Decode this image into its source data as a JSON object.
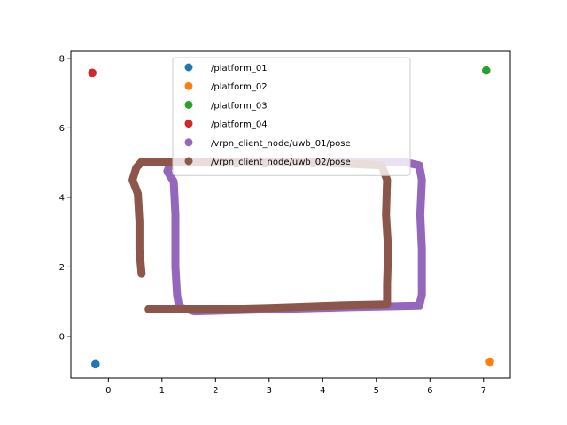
{
  "chart_data": {
    "type": "scatter",
    "xlim": [
      -0.7,
      7.5
    ],
    "ylim": [
      -1.2,
      8.2
    ],
    "x_ticks": [
      0,
      1,
      2,
      3,
      4,
      5,
      6,
      7
    ],
    "y_ticks": [
      0,
      2,
      4,
      6,
      8
    ],
    "x_tick_labels": [
      "0",
      "1",
      "2",
      "3",
      "4",
      "5",
      "6",
      "7"
    ],
    "y_tick_labels": [
      "0",
      "2",
      "4",
      "6",
      "8"
    ],
    "grid": false,
    "legend_position": "top-center",
    "series": [
      {
        "name": "/platform_01",
        "color": "#1f77b4",
        "marker_size": "small",
        "points": [
          [
            -0.24,
            -0.8
          ]
        ]
      },
      {
        "name": "/platform_02",
        "color": "#ff7f0e",
        "marker_size": "small",
        "points": [
          [
            7.12,
            -0.73
          ]
        ]
      },
      {
        "name": "/platform_03",
        "color": "#2ca02c",
        "marker_size": "small",
        "points": [
          [
            7.05,
            7.65
          ]
        ]
      },
      {
        "name": "/platform_04",
        "color": "#d62728",
        "marker_size": "small",
        "points": [
          [
            -0.3,
            7.58
          ]
        ]
      },
      {
        "name": "/vrpn_client_node/uwb_01/pose",
        "color": "#9467bd",
        "marker_size": "trail",
        "path": [
          [
            1.15,
            4.95
          ],
          [
            1.1,
            4.75
          ],
          [
            1.22,
            4.45
          ],
          [
            1.25,
            3.5
          ],
          [
            1.25,
            2.0
          ],
          [
            1.28,
            1.2
          ],
          [
            1.32,
            0.85
          ],
          [
            1.6,
            0.72
          ],
          [
            3.0,
            0.78
          ],
          [
            4.5,
            0.84
          ],
          [
            5.8,
            0.88
          ],
          [
            5.85,
            1.2
          ],
          [
            5.85,
            2.5
          ],
          [
            5.82,
            3.5
          ],
          [
            5.85,
            4.5
          ],
          [
            5.8,
            4.92
          ],
          [
            5.5,
            5.02
          ],
          [
            4.5,
            5.02
          ],
          [
            3.0,
            5.0
          ],
          [
            1.2,
            5.0
          ]
        ]
      },
      {
        "name": "/vrpn_client_node/uwb_02/pose",
        "color": "#8c564b",
        "marker_size": "trail",
        "path": [
          [
            0.62,
            1.8
          ],
          [
            0.58,
            2.5
          ],
          [
            0.58,
            3.3
          ],
          [
            0.55,
            4.1
          ],
          [
            0.45,
            4.5
          ],
          [
            0.52,
            4.85
          ],
          [
            0.62,
            5.02
          ],
          [
            1.2,
            5.02
          ],
          [
            2.5,
            5.02
          ],
          [
            4.0,
            5.0
          ],
          [
            5.1,
            4.92
          ],
          [
            5.2,
            4.5
          ],
          [
            5.18,
            3.5
          ],
          [
            5.22,
            2.5
          ],
          [
            5.2,
            1.5
          ],
          [
            5.2,
            0.92
          ],
          [
            4.5,
            0.9
          ],
          [
            3.0,
            0.82
          ],
          [
            2.0,
            0.78
          ],
          [
            1.2,
            0.78
          ],
          [
            0.75,
            0.78
          ]
        ]
      }
    ]
  }
}
